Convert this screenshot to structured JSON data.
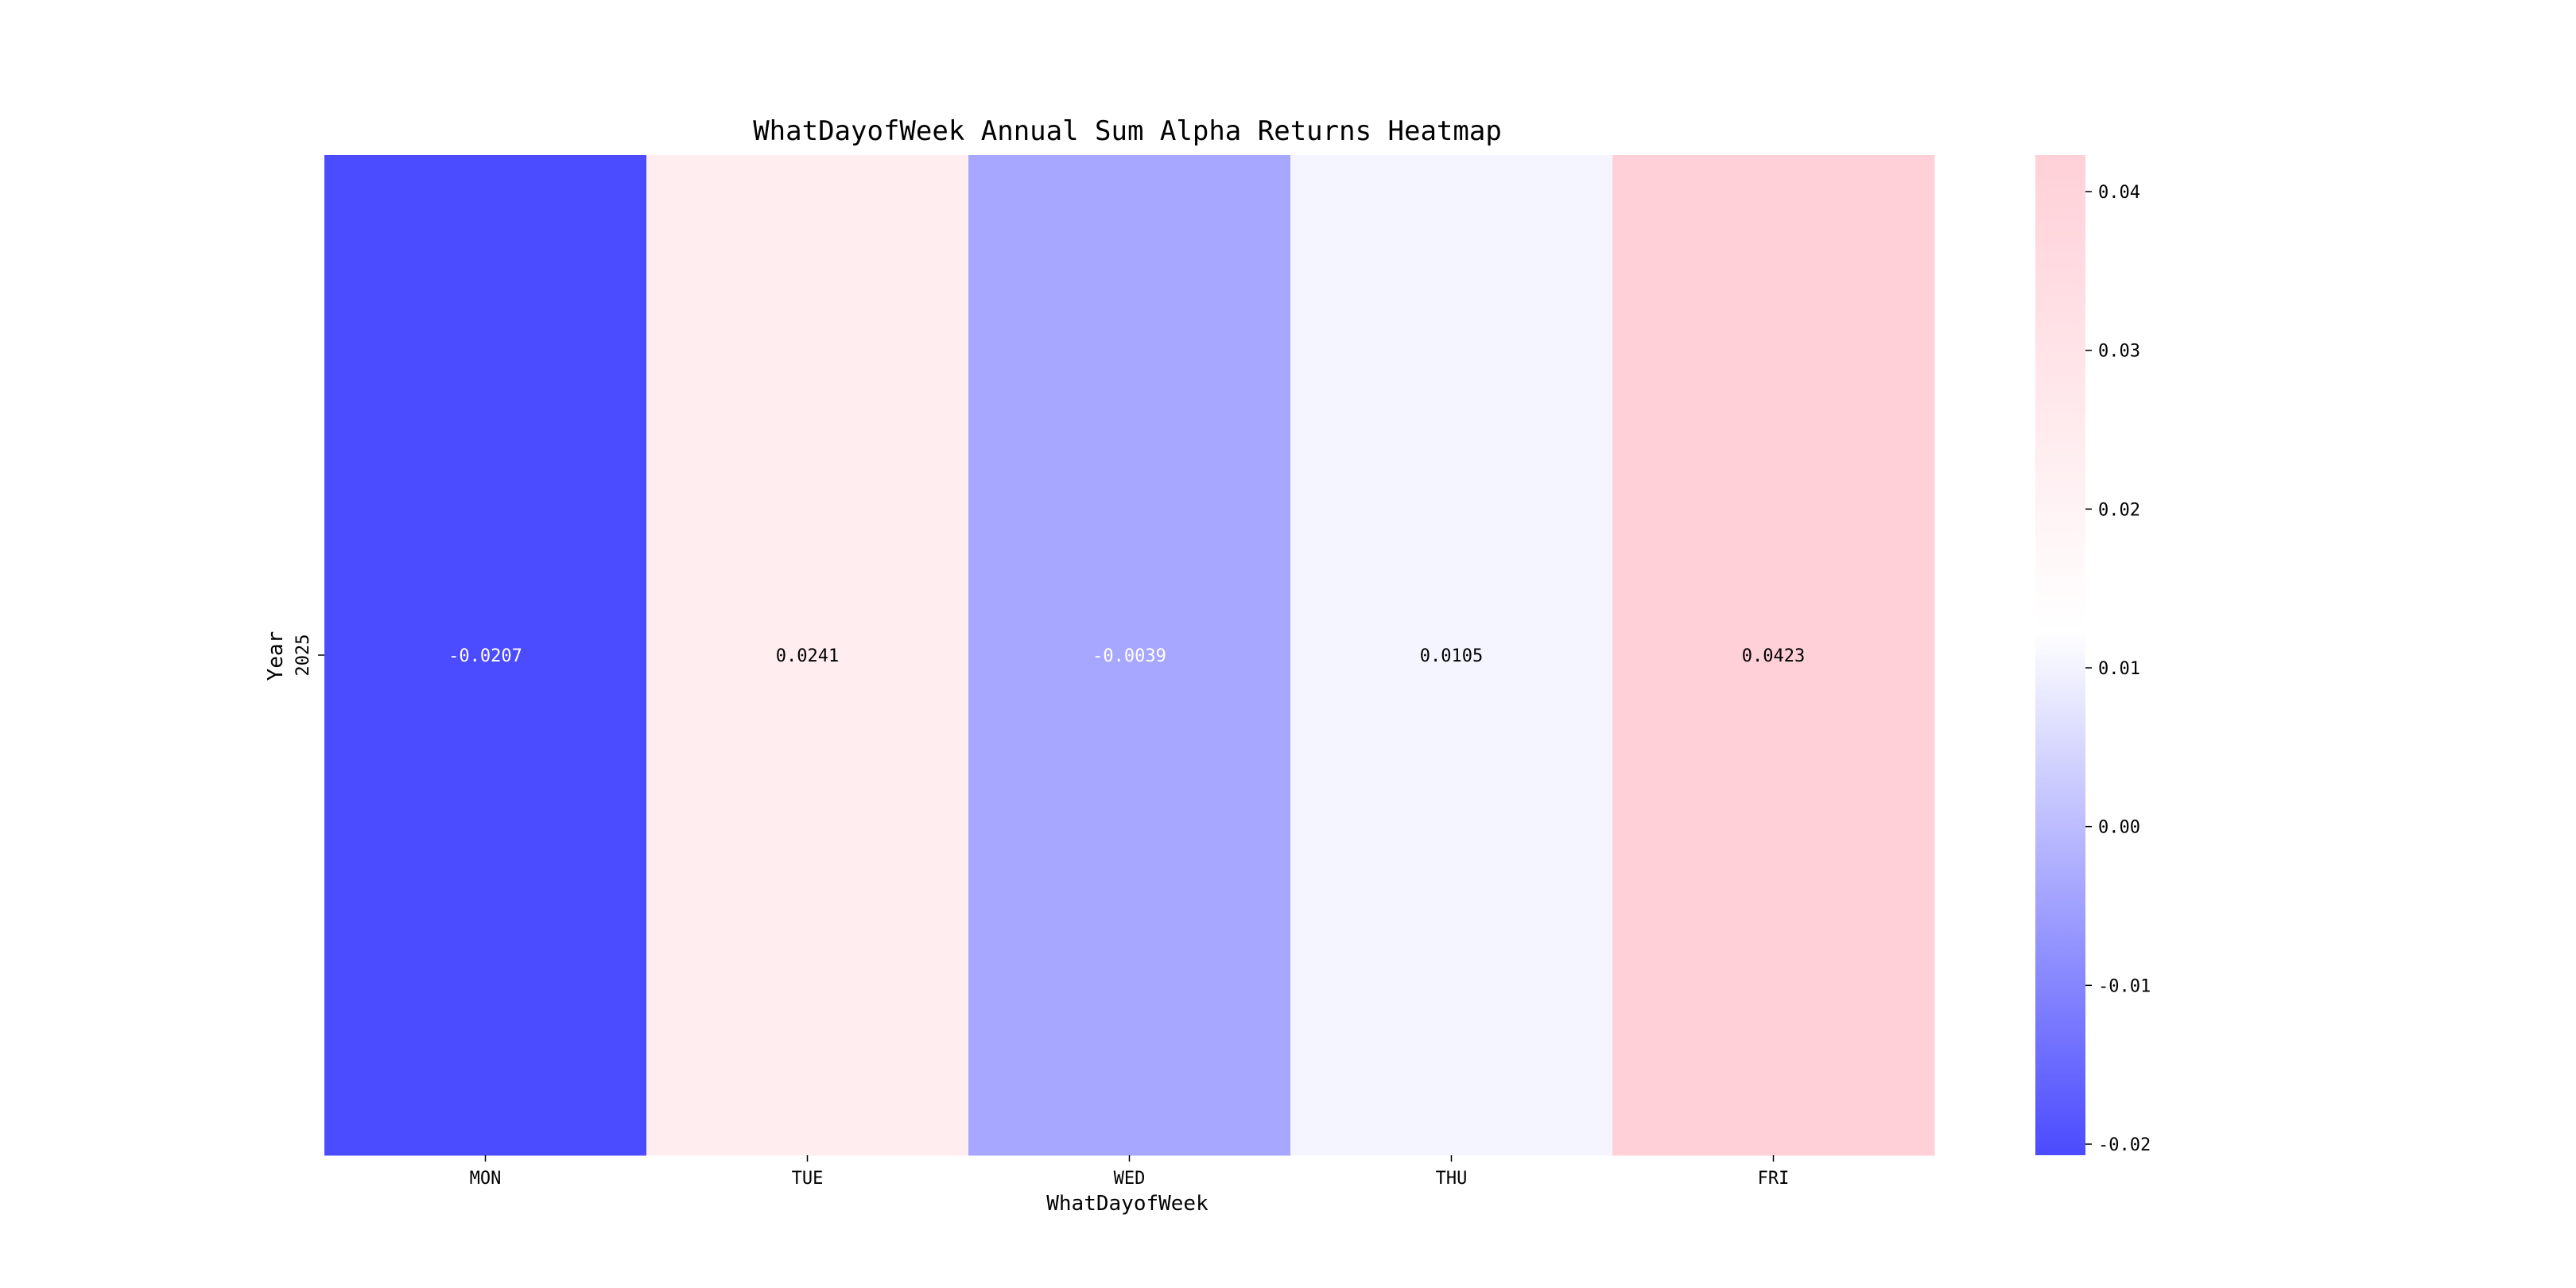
{
  "chart_data": {
    "type": "heatmap",
    "title": "WhatDayofWeek Annual Sum Alpha Returns Heatmap",
    "xlabel": "WhatDayofWeek",
    "ylabel": "Year",
    "x_categories": [
      "MON",
      "TUE",
      "WED",
      "THU",
      "FRI"
    ],
    "y_categories": [
      "2025"
    ],
    "values": [
      [
        -0.0207,
        0.0241,
        -0.0039,
        0.0105,
        0.0423
      ]
    ],
    "cell_labels": [
      [
        "-0.0207",
        "0.0241",
        "-0.0039",
        "0.0105",
        "0.0423"
      ]
    ],
    "colorbar": {
      "range": [
        -0.0207,
        0.0423
      ],
      "center": 0.0123,
      "ticks": [
        -0.02,
        -0.01,
        0.0,
        0.01,
        0.02,
        0.03,
        0.04
      ],
      "tick_labels": [
        "-0.02",
        "-0.01",
        "0.00",
        "0.01",
        "0.02",
        "0.03",
        "0.04"
      ]
    },
    "colors": {
      "low": "#4b4bff",
      "mid": "#ffffff",
      "high": "#ffd0d8",
      "text_on_dark": "#ffffff",
      "text_on_light": "#000000"
    }
  }
}
